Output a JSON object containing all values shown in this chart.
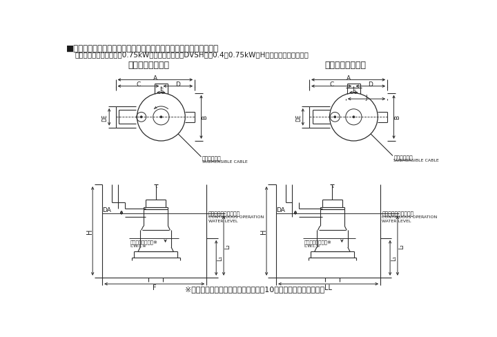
{
  "title_line1": "■外形寸法図　計画・実施に際しては納入仕様書をご請求ください。",
  "title_line2": "　非自動形（異電圧仕様0.75kW以下及び高温仕様DVSH型の0.4、0.75kWはH寸法が異なります。）",
  "label_tl": "吐出し曲管一体形",
  "label_tr": "吐出し曲管分割形",
  "water_cont": "連続運転可能最低水位",
  "water_min": "運転可能最低水位※",
  "footnote": "※　運転可能最低水位での運転時間は10分以内にしてください。",
  "submersible_cable_jp": "水中ケーブル",
  "submersible_cable_en": "SUBMERSIBLE CABLE",
  "cont_op": "CONTINUOUS OPERATION",
  "water_level": "WATER LEVEL",
  "lwl": "L.W.L.※",
  "bg_color": "#ffffff",
  "line_color": "#2a2a2a",
  "text_color": "#1a1a1a"
}
